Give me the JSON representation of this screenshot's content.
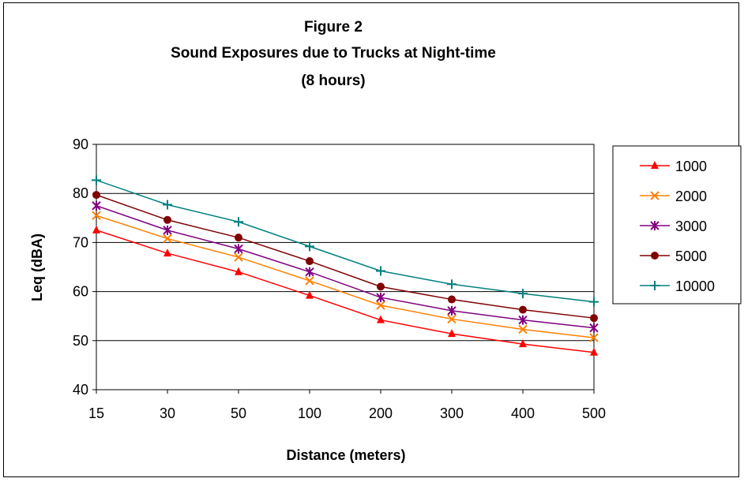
{
  "chart_data": {
    "type": "line",
    "title_lines": [
      "Figure 2",
      "Sound Exposures due to Trucks at Night-time",
      "(8 hours)"
    ],
    "xlabel": "Distance (meters)",
    "ylabel": "Leq (dBA)",
    "categories": [
      "15",
      "30",
      "50",
      "100",
      "200",
      "300",
      "400",
      "500"
    ],
    "ylim": [
      40,
      90
    ],
    "yticks": [
      40,
      50,
      60,
      70,
      80,
      90
    ],
    "grid": "horizontal",
    "legend_position": "right",
    "series": [
      {
        "name": "1000",
        "color": "#ff0000",
        "marker": "triangle",
        "values": [
          72.5,
          67.8,
          64,
          59.2,
          54.2,
          51.4,
          49.3,
          47.6
        ]
      },
      {
        "name": "2000",
        "color": "#ff8000",
        "marker": "x",
        "values": [
          75.5,
          70.8,
          67,
          62.2,
          57.2,
          54.4,
          52.3,
          50.6
        ]
      },
      {
        "name": "3000",
        "color": "#800080",
        "marker": "star",
        "values": [
          77.5,
          72.5,
          68.7,
          64,
          58.8,
          56.1,
          54.2,
          52.6
        ]
      },
      {
        "name": "5000",
        "color": "#800000",
        "marker": "circle",
        "values": [
          79.7,
          74.6,
          71,
          66.2,
          61,
          58.4,
          56.3,
          54.6
        ]
      },
      {
        "name": "10000",
        "color": "#008080",
        "marker": "plus",
        "values": [
          82.7,
          77.7,
          74.2,
          69.2,
          64.2,
          61.5,
          59.6,
          57.9
        ]
      }
    ]
  }
}
